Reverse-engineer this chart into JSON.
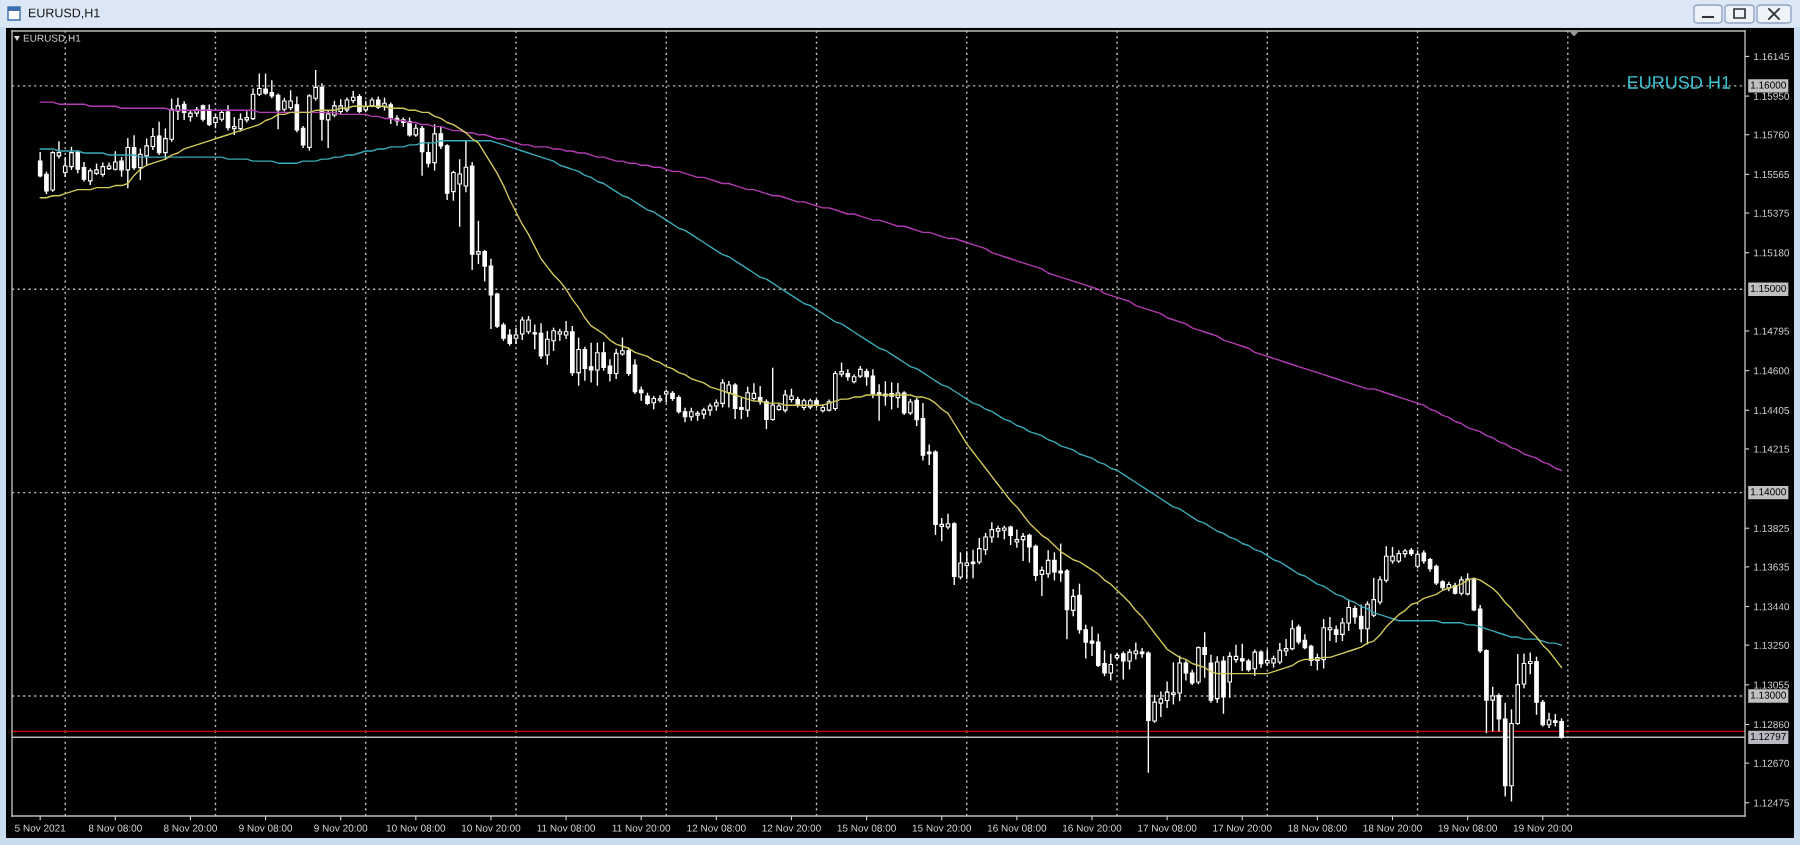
{
  "chart_data": {
    "type": "candlestick",
    "title": "EURUSD,H1",
    "subtitle": "EURUSD,H1",
    "annotations": [
      "EURUSD H1"
    ],
    "categories": [
      "5 Nov 2021",
      null,
      null,
      null,
      null,
      null,
      null,
      null,
      null,
      null,
      null,
      null,
      "8 Nov 08:00",
      null,
      null,
      null,
      null,
      null,
      null,
      null,
      null,
      null,
      null,
      null,
      "8 Nov 20:00",
      null,
      null,
      null,
      null,
      null,
      null,
      null,
      null,
      null,
      null,
      null,
      "9 Nov 08:00",
      null,
      null,
      null,
      null,
      null,
      null,
      null,
      null,
      null,
      null,
      null,
      "9 Nov 20:00",
      null,
      null,
      null,
      null,
      null,
      null,
      null,
      null,
      null,
      null,
      null,
      "10 Nov 08:00",
      null,
      null,
      null,
      null,
      null,
      null,
      null,
      null,
      null,
      null,
      null,
      "10 Nov 20:00",
      null,
      null,
      null,
      null,
      null,
      null,
      null,
      null,
      null,
      null,
      null,
      "11 Nov 08:00",
      null,
      null,
      null,
      null,
      null,
      null,
      null,
      null,
      null,
      null,
      null,
      "11 Nov 20:00",
      null,
      null,
      null,
      null,
      null,
      null,
      null,
      null,
      null,
      null,
      null,
      "12 Nov 08:00",
      null,
      null,
      null,
      null,
      null,
      null,
      null,
      null,
      null,
      null,
      null,
      "12 Nov 20:00",
      null,
      null,
      null,
      null,
      null,
      null,
      null,
      null,
      null,
      null,
      null,
      "15 Nov 08:00",
      null,
      null,
      null,
      null,
      null,
      null,
      null,
      null,
      null,
      null,
      null,
      "15 Nov 20:00",
      null,
      null,
      null,
      null,
      null,
      null,
      null,
      null,
      null,
      null,
      null,
      "16 Nov 08:00",
      null,
      null,
      null,
      null,
      null,
      null,
      null,
      null,
      null,
      null,
      null,
      "16 Nov 20:00",
      null,
      null,
      null,
      null,
      null,
      null,
      null,
      null,
      null,
      null,
      null,
      "17 Nov 08:00",
      null,
      null,
      null,
      null,
      null,
      null,
      null,
      null,
      null,
      null,
      null,
      "17 Nov 20:00",
      null,
      null,
      null,
      null,
      null,
      null,
      null,
      null,
      null,
      null,
      null,
      "18 Nov 08:00",
      null,
      null,
      null,
      null,
      null,
      null,
      null,
      null,
      null,
      null,
      null,
      "18 Nov 20:00",
      null,
      null,
      null,
      null,
      null,
      null,
      null,
      null,
      null,
      null,
      null,
      "19 Nov 08:00",
      null,
      null,
      null,
      null,
      null,
      null,
      null,
      null,
      null,
      null,
      null,
      "19 Nov 20:00",
      null,
      null,
      null
    ],
    "ohlc": [
      [
        1.15631,
        1.15672,
        1.15554,
        1.15557
      ],
      [
        1.15565,
        1.15575,
        1.15472,
        1.15483
      ],
      [
        1.15488,
        1.15675,
        1.15483,
        1.15672
      ],
      [
        1.15656,
        1.15724,
        1.15647,
        1.15672
      ],
      [
        1.15574,
        1.15647,
        1.15557,
        1.15606
      ],
      [
        1.15603,
        1.15697,
        1.1559,
        1.15672
      ],
      [
        1.15675,
        1.1568,
        1.15574,
        1.1559
      ],
      [
        1.15598,
        1.15623,
        1.15533,
        1.15541
      ],
      [
        1.15533,
        1.1559,
        1.15516,
        1.15582
      ],
      [
        1.1557,
        1.15615,
        1.15565,
        1.15587
      ],
      [
        1.15565,
        1.1562,
        1.15557,
        1.15603
      ],
      [
        1.15593,
        1.1562,
        1.1559,
        1.15606
      ],
      [
        1.1559,
        1.15675,
        1.15587,
        1.15626
      ],
      [
        1.15631,
        1.15647,
        1.15557,
        1.15587
      ],
      [
        1.15587,
        1.15741,
        1.155,
        1.15697
      ],
      [
        1.15697,
        1.15754,
        1.1559,
        1.15598
      ],
      [
        1.15598,
        1.15688,
        1.15541,
        1.15664
      ],
      [
        1.15656,
        1.15738,
        1.15615,
        1.15705
      ],
      [
        1.15702,
        1.1579,
        1.15688,
        1.15751
      ],
      [
        1.15754,
        1.1582,
        1.15664,
        1.15672
      ],
      [
        1.15672,
        1.15787,
        1.15639,
        1.15741
      ],
      [
        1.15738,
        1.15934,
        1.15729,
        1.15885
      ],
      [
        1.15877,
        1.15938,
        1.15836,
        1.15902
      ],
      [
        1.1591,
        1.15921,
        1.15836,
        1.15869
      ],
      [
        1.15849,
        1.15877,
        1.15828,
        1.15866
      ],
      [
        1.15866,
        1.15893,
        1.15852,
        1.15882
      ],
      [
        1.15902,
        1.15905,
        1.15828,
        1.15836
      ],
      [
        1.15882,
        1.15905,
        1.15806,
        1.15811
      ],
      [
        1.1582,
        1.15861,
        1.15795,
        1.15844
      ],
      [
        1.15836,
        1.15877,
        1.15828,
        1.15869
      ],
      [
        1.15872,
        1.15902,
        1.15784,
        1.15795
      ],
      [
        1.1579,
        1.15844,
        1.15762,
        1.158
      ],
      [
        1.1579,
        1.15861,
        1.15779,
        1.15836
      ],
      [
        1.15833,
        1.15872,
        1.15823,
        1.15844
      ],
      [
        1.15839,
        1.15984,
        1.15836,
        1.15959
      ],
      [
        1.15959,
        1.16057,
        1.15954,
        1.15987
      ],
      [
        1.15984,
        1.16057,
        1.15959,
        1.15964
      ],
      [
        1.15967,
        1.16025,
        1.15943,
        1.15951
      ],
      [
        1.15954,
        1.15959,
        1.1579,
        1.15882
      ],
      [
        1.15885,
        1.15938,
        1.15877,
        1.15926
      ],
      [
        1.15893,
        1.15975,
        1.15885,
        1.15926
      ],
      [
        1.15907,
        1.15944,
        1.15775,
        1.15784
      ],
      [
        1.15792,
        1.158,
        1.15698,
        1.1571
      ],
      [
        1.15698,
        1.15956,
        1.15685,
        1.15951
      ],
      [
        1.15939,
        1.16075,
        1.15931,
        1.15993
      ],
      [
        1.15993,
        1.1601,
        1.15734,
        1.15836
      ],
      [
        1.15833,
        1.15874,
        1.15698,
        1.15862
      ],
      [
        1.15857,
        1.15923,
        1.15849,
        1.15902
      ],
      [
        1.15874,
        1.15931,
        1.15866,
        1.15902
      ],
      [
        1.15882,
        1.15939,
        1.15874,
        1.15931
      ],
      [
        1.15928,
        1.15972,
        1.15918,
        1.15944
      ],
      [
        1.15948,
        1.15956,
        1.15869,
        1.15874
      ],
      [
        1.15882,
        1.15923,
        1.15874,
        1.15898
      ],
      [
        1.15902,
        1.15939,
        1.15898,
        1.15931
      ],
      [
        1.15931,
        1.15944,
        1.1589,
        1.15895
      ],
      [
        1.15898,
        1.15939,
        1.15882,
        1.15915
      ],
      [
        1.15907,
        1.15915,
        1.15816,
        1.15841
      ],
      [
        1.15841,
        1.15852,
        1.15808,
        1.15828
      ],
      [
        1.15833,
        1.15841,
        1.15803,
        1.1582
      ],
      [
        1.15825,
        1.15841,
        1.15754,
        1.15759
      ],
      [
        1.15759,
        1.15808,
        1.15754,
        1.15792
      ],
      [
        1.15792,
        1.158,
        1.15562,
        1.15677
      ],
      [
        1.15672,
        1.15718,
        1.15603,
        1.1562
      ],
      [
        1.15623,
        1.15808,
        1.15587,
        1.15764
      ],
      [
        1.15764,
        1.158,
        1.15693,
        1.15705
      ],
      [
        1.15705,
        1.1571,
        1.15442,
        1.15472
      ],
      [
        1.1548,
        1.15579,
        1.15439,
        1.15574
      ],
      [
        1.15518,
        1.15636,
        1.15311,
        1.15567
      ],
      [
        1.15508,
        1.15731,
        1.1548,
        1.156
      ],
      [
        1.15606,
        1.15623,
        1.15098,
        1.15173
      ],
      [
        1.15173,
        1.15333,
        1.15128,
        1.15185
      ],
      [
        1.15185,
        1.1519,
        1.15042,
        1.15114
      ],
      [
        1.15114,
        1.15147,
        1.14808,
        1.14972
      ],
      [
        1.14977,
        1.1498,
        1.14813,
        1.14819
      ],
      [
        1.14824,
        1.14832,
        1.1475,
        1.14759
      ],
      [
        1.14775,
        1.148,
        1.14726,
        1.14734
      ],
      [
        1.14759,
        1.14808,
        1.14734,
        1.14775
      ],
      [
        1.1478,
        1.14862,
        1.14754,
        1.14849
      ],
      [
        1.14791,
        1.14865,
        1.14783,
        1.14849
      ],
      [
        1.14786,
        1.14824,
        1.14709,
        1.1478
      ],
      [
        1.14783,
        1.14829,
        1.1466,
        1.14672
      ],
      [
        1.14677,
        1.14791,
        1.14632,
        1.14754
      ],
      [
        1.14747,
        1.14808,
        1.14701,
        1.14796
      ],
      [
        1.1478,
        1.14803,
        1.1475,
        1.14791
      ],
      [
        1.14775,
        1.14841,
        1.14759,
        1.14791
      ],
      [
        1.14791,
        1.14816,
        1.14578,
        1.1459
      ],
      [
        1.1459,
        1.14759,
        1.14529,
        1.14704
      ],
      [
        1.14704,
        1.14714,
        1.14554,
        1.14611
      ],
      [
        1.14619,
        1.14734,
        1.14545,
        1.14603
      ],
      [
        1.14603,
        1.14734,
        1.14529,
        1.14688
      ],
      [
        1.14688,
        1.14737,
        1.14603,
        1.14616
      ],
      [
        1.14622,
        1.14652,
        1.1455,
        1.14586
      ],
      [
        1.14586,
        1.14704,
        1.14562,
        1.14685
      ],
      [
        1.14682,
        1.14759,
        1.14677,
        1.14698
      ],
      [
        1.14698,
        1.14709,
        1.14578,
        1.14586
      ],
      [
        1.14627,
        1.14652,
        1.14488,
        1.14496
      ],
      [
        1.14504,
        1.14518,
        1.14455,
        1.14491
      ],
      [
        1.14475,
        1.14488,
        1.14435,
        1.14439
      ],
      [
        1.14442,
        1.14472,
        1.14414,
        1.14463
      ],
      [
        1.14455,
        1.14475,
        1.14447,
        1.14462
      ],
      [
        1.14485,
        1.14504,
        1.14447,
        1.14496
      ],
      [
        1.14488,
        1.14496,
        1.14455,
        1.14463
      ],
      [
        1.14468,
        1.14475,
        1.14393,
        1.14398
      ],
      [
        1.14398,
        1.14414,
        1.14349,
        1.14373
      ],
      [
        1.14373,
        1.14414,
        1.14357,
        1.14398
      ],
      [
        1.14381,
        1.14398,
        1.14357,
        1.1439
      ],
      [
        1.14386,
        1.14414,
        1.14365,
        1.14406
      ],
      [
        1.14406,
        1.14435,
        1.14381,
        1.14426
      ],
      [
        1.14426,
        1.14455,
        1.14406,
        1.14442
      ],
      [
        1.14439,
        1.14554,
        1.14422,
        1.1454
      ],
      [
        1.14491,
        1.14545,
        1.14422,
        1.14529
      ],
      [
        1.14529,
        1.14534,
        1.14365,
        1.14414
      ],
      [
        1.14419,
        1.14463,
        1.14365,
        1.14409
      ],
      [
        1.14406,
        1.14518,
        1.14376,
        1.14491
      ],
      [
        1.14463,
        1.14534,
        1.14455,
        1.14488
      ],
      [
        1.14468,
        1.14521,
        1.14435,
        1.14447
      ],
      [
        1.14447,
        1.14455,
        1.14316,
        1.1436
      ],
      [
        1.1436,
        1.14611,
        1.14357,
        1.14431
      ],
      [
        1.14409,
        1.14435,
        1.14406,
        1.14426
      ],
      [
        1.14406,
        1.14501,
        1.14398,
        1.1448
      ],
      [
        1.14458,
        1.14508,
        1.14447,
        1.14475
      ],
      [
        1.14458,
        1.14468,
        1.14422,
        1.14435
      ],
      [
        1.14419,
        1.14458,
        1.14409,
        1.14452
      ],
      [
        1.14422,
        1.14458,
        1.14414,
        1.14452
      ],
      [
        1.14452,
        1.14458,
        1.14419,
        1.14431
      ],
      [
        1.14403,
        1.14431,
        1.14398,
        1.14419
      ],
      [
        1.14406,
        1.14455,
        1.14403,
        1.14447
      ],
      [
        1.14414,
        1.14595,
        1.14406,
        1.14586
      ],
      [
        1.14583,
        1.14636,
        1.14573,
        1.14595
      ],
      [
        1.14586,
        1.14603,
        1.14554,
        1.1457
      ],
      [
        1.14545,
        1.14578,
        1.1454,
        1.1457
      ],
      [
        1.14573,
        1.14619,
        1.14567,
        1.14606
      ],
      [
        1.14595,
        1.14606,
        1.14529,
        1.1457
      ],
      [
        1.14573,
        1.14603,
        1.14468,
        1.14488
      ],
      [
        1.14491,
        1.14529,
        1.14357,
        1.1448
      ],
      [
        1.14485,
        1.14544,
        1.14431,
        1.14475
      ],
      [
        1.14487,
        1.14539,
        1.14413,
        1.14474
      ],
      [
        1.14467,
        1.14536,
        1.14421,
        1.1449
      ],
      [
        1.1449,
        1.14495,
        1.14385,
        1.14392
      ],
      [
        1.14392,
        1.14457,
        1.14385,
        1.14446
      ],
      [
        1.14454,
        1.14462,
        1.14331,
        1.14359
      ],
      [
        1.14364,
        1.14438,
        1.14162,
        1.14184
      ],
      [
        1.142,
        1.14233,
        1.14139,
        1.14192
      ],
      [
        1.142,
        1.14205,
        1.13795,
        1.13844
      ],
      [
        1.13834,
        1.13872,
        1.13765,
        1.13844
      ],
      [
        1.13831,
        1.13893,
        1.13823,
        1.13847
      ],
      [
        1.13847,
        1.13851,
        1.13549,
        1.13588
      ],
      [
        1.13585,
        1.13703,
        1.13577,
        1.13654
      ],
      [
        1.13642,
        1.13708,
        1.13577,
        1.13654
      ],
      [
        1.13659,
        1.13716,
        1.13582,
        1.13651
      ],
      [
        1.13659,
        1.13774,
        1.13651,
        1.13725
      ],
      [
        1.13719,
        1.13798,
        1.13697,
        1.13782
      ],
      [
        1.13782,
        1.13851,
        1.13757,
        1.13818
      ],
      [
        1.13811,
        1.13834,
        1.13782,
        1.13823
      ],
      [
        1.13815,
        1.13834,
        1.13774,
        1.13826
      ],
      [
        1.13831,
        1.13834,
        1.13746,
        1.1379
      ],
      [
        1.13757,
        1.13815,
        1.13733,
        1.13769
      ],
      [
        1.13769,
        1.13798,
        1.13667,
        1.13785
      ],
      [
        1.1379,
        1.13795,
        1.1366,
        1.13733
      ],
      [
        1.13736,
        1.13741,
        1.13569,
        1.13593
      ],
      [
        1.13598,
        1.13634,
        1.13495,
        1.13618
      ],
      [
        1.13601,
        1.13713,
        1.13585,
        1.13667
      ],
      [
        1.13667,
        1.13703,
        1.13572,
        1.1361
      ],
      [
        1.13615,
        1.13746,
        1.13565,
        1.13605
      ],
      [
        1.13615,
        1.13621,
        1.13282,
        1.13424
      ],
      [
        1.13421,
        1.13523,
        1.13396,
        1.1349
      ],
      [
        1.13495,
        1.13549,
        1.1331,
        1.13326
      ],
      [
        1.13326,
        1.13347,
        1.13188,
        1.13265
      ],
      [
        1.1327,
        1.13339,
        1.132,
        1.1326
      ],
      [
        1.13265,
        1.13303,
        1.13146,
        1.1315
      ],
      [
        1.13159,
        1.13221,
        1.13101,
        1.13113
      ],
      [
        1.13113,
        1.13205,
        1.1308,
        1.13155
      ],
      [
        1.13188,
        1.13208,
        1.13183,
        1.132
      ],
      [
        1.13208,
        1.13216,
        1.13085,
        1.13172
      ],
      [
        1.13172,
        1.13228,
        1.13134,
        1.13216
      ],
      [
        1.13208,
        1.1326,
        1.13183,
        1.13221
      ],
      [
        1.13216,
        1.13233,
        1.13192,
        1.13208
      ],
      [
        1.13211,
        1.13216,
        1.12626,
        1.1288
      ],
      [
        1.12877,
        1.13003,
        1.12872,
        1.1297
      ],
      [
        1.12965,
        1.13019,
        1.129,
        1.12986
      ],
      [
        1.12978,
        1.13068,
        1.12945,
        1.13019
      ],
      [
        1.13008,
        1.13162,
        1.12962,
        1.13016
      ],
      [
        1.13015,
        1.13195,
        1.12979,
        1.13162
      ],
      [
        1.13162,
        1.13172,
        1.1308,
        1.13113
      ],
      [
        1.13113,
        1.13126,
        1.13057,
        1.13064
      ],
      [
        1.13069,
        1.13241,
        1.13061,
        1.13238
      ],
      [
        1.13238,
        1.1331,
        1.13093,
        1.13205
      ],
      [
        1.13162,
        1.132,
        1.1297,
        1.12979
      ],
      [
        1.12987,
        1.13192,
        1.1297,
        1.13167
      ],
      [
        1.13172,
        1.13192,
        1.12916,
        1.12995
      ],
      [
        1.13069,
        1.13212,
        1.12995,
        1.13195
      ],
      [
        1.13179,
        1.13249,
        1.13167,
        1.13195
      ],
      [
        1.13184,
        1.13254,
        1.13126,
        1.13172
      ],
      [
        1.13172,
        1.13179,
        1.13123,
        1.1313
      ],
      [
        1.13134,
        1.13225,
        1.13102,
        1.13216
      ],
      [
        1.13216,
        1.13221,
        1.13143,
        1.13159
      ],
      [
        1.13162,
        1.13225,
        1.13151,
        1.13175
      ],
      [
        1.13162,
        1.13195,
        1.13143,
        1.13184
      ],
      [
        1.13167,
        1.13257,
        1.13159,
        1.13225
      ],
      [
        1.13221,
        1.13277,
        1.132,
        1.13233
      ],
      [
        1.13233,
        1.13369,
        1.13228,
        1.13331
      ],
      [
        1.13339,
        1.13348,
        1.13257,
        1.13266
      ],
      [
        1.13274,
        1.133,
        1.13233,
        1.13238
      ],
      [
        1.13244,
        1.13249,
        1.13151,
        1.13175
      ],
      [
        1.13175,
        1.13205,
        1.1313,
        1.13189
      ],
      [
        1.13179,
        1.13375,
        1.13139,
        1.13336
      ],
      [
        1.13326,
        1.13385,
        1.13274,
        1.13336
      ],
      [
        1.13326,
        1.13343,
        1.13266,
        1.13303
      ],
      [
        1.13303,
        1.1338,
        1.13274,
        1.13359
      ],
      [
        1.13359,
        1.13471,
        1.13323,
        1.13435
      ],
      [
        1.1343,
        1.13441,
        1.13359,
        1.13389
      ],
      [
        1.13392,
        1.13446,
        1.13266,
        1.13331
      ],
      [
        1.13331,
        1.13462,
        1.13257,
        1.13451
      ],
      [
        1.13397,
        1.13577,
        1.13392,
        1.13474
      ],
      [
        1.13462,
        1.13585,
        1.13454,
        1.13572
      ],
      [
        1.13569,
        1.13733,
        1.13561,
        1.13687
      ],
      [
        1.13664,
        1.1373,
        1.13654,
        1.13687
      ],
      [
        1.13664,
        1.13713,
        1.13659,
        1.137
      ],
      [
        1.137,
        1.1372,
        1.13684,
        1.13713
      ],
      [
        1.13717,
        1.13725,
        1.13692,
        1.137
      ],
      [
        1.13638,
        1.13713,
        1.13631,
        1.13697
      ],
      [
        1.13703,
        1.13713,
        1.13654,
        1.13664
      ],
      [
        1.13671,
        1.13676,
        1.13615,
        1.13626
      ],
      [
        1.13638,
        1.13643,
        1.13549,
        1.13556
      ],
      [
        1.13561,
        1.13566,
        1.13523,
        1.13533
      ],
      [
        1.13531,
        1.13559,
        1.13518,
        1.13548
      ],
      [
        1.13543,
        1.13554,
        1.13502,
        1.13505
      ],
      [
        1.13505,
        1.13584,
        1.13498,
        1.13571
      ],
      [
        1.13502,
        1.136,
        1.13498,
        1.13575
      ],
      [
        1.13571,
        1.13575,
        1.1342,
        1.13423
      ],
      [
        1.13428,
        1.13444,
        1.13215,
        1.13223
      ],
      [
        1.13223,
        1.13226,
        1.12821,
        1.1298
      ],
      [
        1.1298,
        1.13042,
        1.12829,
        1.13
      ],
      [
        1.13002,
        1.1301,
        1.12829,
        1.12887
      ],
      [
        1.12887,
        1.12964,
        1.12509,
        1.12559
      ],
      [
        1.12559,
        1.12931,
        1.12485,
        1.12865
      ],
      [
        1.12865,
        1.13203,
        1.12862,
        1.13056
      ],
      [
        1.13059,
        1.13206,
        1.13042,
        1.1316
      ],
      [
        1.1316,
        1.1321,
        1.13111,
        1.1317
      ],
      [
        1.1317,
        1.1319,
        1.12911,
        1.12969
      ],
      [
        1.12969,
        1.12977,
        1.12854,
        1.12859
      ],
      [
        1.12859,
        1.12914,
        1.12846,
        1.12882
      ],
      [
        1.12878,
        1.12908,
        1.12854,
        1.1287
      ],
      [
        1.12875,
        1.12887,
        1.12793,
        1.12797
      ]
    ],
    "color": "#ffffff",
    "series": [
      {
        "type": "line",
        "color": "#b23cb4",
        "values": [
          1.1592,
          1.1592,
          1.1592,
          1.1591,
          1.1591,
          1.1591,
          1.1591,
          1.1591,
          1.159,
          1.159,
          1.159,
          1.159,
          1.159,
          1.1589,
          1.1589,
          1.1589,
          1.1589,
          1.1589,
          1.1589,
          1.1589,
          1.1589,
          1.1588,
          1.1588,
          1.1588,
          1.1588,
          1.1588,
          1.1588,
          1.1588,
          1.1588,
          1.1588,
          1.1588,
          1.1588,
          1.1588,
          1.1588,
          1.1588,
          1.1587,
          1.1587,
          1.1587,
          1.1587,
          1.1587,
          1.1587,
          1.1587,
          1.1587,
          1.1587,
          1.1587,
          1.1587,
          1.1587,
          1.1587,
          1.1586,
          1.1586,
          1.1586,
          1.1586,
          1.1586,
          1.1585,
          1.1585,
          1.1584,
          1.1584,
          1.1583,
          1.1583,
          1.1582,
          1.1582,
          1.1581,
          1.1581,
          1.158,
          1.158,
          1.1579,
          1.1578,
          1.1578,
          1.1577,
          1.1577,
          1.1576,
          1.1576,
          1.1575,
          1.1574,
          1.1574,
          1.1573,
          1.1572,
          1.1571,
          1.1571,
          1.157,
          1.157,
          1.157,
          1.1569,
          1.1569,
          1.1568,
          1.1568,
          1.1567,
          1.1567,
          1.1566,
          1.1565,
          1.1565,
          1.1564,
          1.1563,
          1.1563,
          1.1562,
          1.1562,
          1.1561,
          1.1561,
          1.156,
          1.156,
          1.1559,
          1.1558,
          1.1558,
          1.1557,
          1.1556,
          1.1555,
          1.1555,
          1.1554,
          1.1553,
          1.1552,
          1.1552,
          1.1551,
          1.155,
          1.1549,
          1.1549,
          1.1548,
          1.1547,
          1.1546,
          1.1546,
          1.1545,
          1.1544,
          1.1543,
          1.1543,
          1.1542,
          1.1541,
          1.154,
          1.154,
          1.1539,
          1.1538,
          1.1537,
          1.1537,
          1.1536,
          1.1535,
          1.1534,
          1.1534,
          1.1533,
          1.1532,
          1.1531,
          1.1531,
          1.153,
          1.1529,
          1.1528,
          1.1528,
          1.1527,
          1.1526,
          1.1525,
          1.1525,
          1.1524,
          1.1523,
          1.1522,
          1.1521,
          1.152,
          1.1518,
          1.1517,
          1.1516,
          1.1515,
          1.1514,
          1.1513,
          1.1512,
          1.1511,
          1.151,
          1.1508,
          1.1507,
          1.1506,
          1.1505,
          1.1504,
          1.1503,
          1.1502,
          1.1501,
          1.15,
          1.1498,
          1.1497,
          1.1496,
          1.1495,
          1.1494,
          1.1492,
          1.1491,
          1.149,
          1.1489,
          1.1488,
          1.1486,
          1.1485,
          1.1484,
          1.1483,
          1.1481,
          1.148,
          1.1479,
          1.1478,
          1.1477,
          1.1475,
          1.1474,
          1.1473,
          1.1472,
          1.1471,
          1.1469,
          1.1468,
          1.1467,
          1.1466,
          1.1465,
          1.1464,
          1.1463,
          1.1462,
          1.1461,
          1.146,
          1.1459,
          1.1458,
          1.1457,
          1.1456,
          1.1455,
          1.1454,
          1.1453,
          1.1452,
          1.1451,
          1.1451,
          1.145,
          1.1449,
          1.1448,
          1.1447,
          1.1446,
          1.1445,
          1.1444,
          1.1443,
          1.1441,
          1.144,
          1.1438,
          1.1437,
          1.1435,
          1.1434,
          1.1432,
          1.1431,
          1.143,
          1.1428,
          1.1427,
          1.1425,
          1.1424,
          1.1422,
          1.1421,
          1.1419,
          1.1418,
          1.1417,
          1.1415,
          1.1414,
          1.1412,
          1.1411
        ]
      },
      {
        "type": "line",
        "color": "#3aa9b9",
        "values": [
          1.1569,
          1.1569,
          1.1569,
          1.1568,
          1.1568,
          1.1568,
          1.1568,
          1.1567,
          1.1567,
          1.1567,
          1.1567,
          1.1566,
          1.1566,
          1.1566,
          1.1566,
          1.1566,
          1.1565,
          1.1565,
          1.1565,
          1.1565,
          1.1565,
          1.1565,
          1.1565,
          1.1565,
          1.1565,
          1.1565,
          1.1565,
          1.1565,
          1.1565,
          1.1565,
          1.1564,
          1.1564,
          1.1564,
          1.1564,
          1.1563,
          1.1563,
          1.1563,
          1.1563,
          1.1562,
          1.1562,
          1.1562,
          1.1562,
          1.1563,
          1.1563,
          1.1563,
          1.1564,
          1.1564,
          1.1565,
          1.1565,
          1.1566,
          1.1566,
          1.1567,
          1.1568,
          1.1568,
          1.1569,
          1.1569,
          1.157,
          1.157,
          1.157,
          1.1571,
          1.1571,
          1.1572,
          1.1572,
          1.1572,
          1.1573,
          1.1573,
          1.1573,
          1.1573,
          1.1573,
          1.1573,
          1.1573,
          1.1573,
          1.1573,
          1.1572,
          1.1571,
          1.157,
          1.1569,
          1.1568,
          1.1567,
          1.1566,
          1.1565,
          1.1564,
          1.1563,
          1.1561,
          1.156,
          1.1559,
          1.1558,
          1.1556,
          1.1555,
          1.1553,
          1.1552,
          1.155,
          1.1548,
          1.1546,
          1.1545,
          1.1543,
          1.1541,
          1.1539,
          1.1538,
          1.1536,
          1.1534,
          1.1532,
          1.153,
          1.1529,
          1.1527,
          1.1525,
          1.1523,
          1.1521,
          1.1519,
          1.1517,
          1.1516,
          1.1514,
          1.1512,
          1.151,
          1.1508,
          1.1506,
          1.1505,
          1.1503,
          1.1501,
          1.1499,
          1.1497,
          1.1495,
          1.1493,
          1.1492,
          1.149,
          1.1488,
          1.1486,
          1.1484,
          1.1483,
          1.1481,
          1.1479,
          1.1477,
          1.1475,
          1.1473,
          1.1471,
          1.147,
          1.1468,
          1.1466,
          1.1464,
          1.1462,
          1.1461,
          1.1459,
          1.1457,
          1.1455,
          1.1453,
          1.1452,
          1.145,
          1.1448,
          1.1446,
          1.1444,
          1.1443,
          1.1441,
          1.144,
          1.1438,
          1.1436,
          1.1435,
          1.1433,
          1.1432,
          1.143,
          1.1429,
          1.1428,
          1.1426,
          1.1425,
          1.1423,
          1.1422,
          1.1421,
          1.1419,
          1.1418,
          1.1417,
          1.1415,
          1.1414,
          1.1412,
          1.1411,
          1.1409,
          1.1407,
          1.1405,
          1.1403,
          1.1401,
          1.1399,
          1.1397,
          1.1395,
          1.1393,
          1.1392,
          1.139,
          1.1388,
          1.1386,
          1.1385,
          1.1383,
          1.1381,
          1.138,
          1.1378,
          1.1377,
          1.1375,
          1.1374,
          1.1372,
          1.1371,
          1.1369,
          1.1367,
          1.1366,
          1.1364,
          1.1362,
          1.136,
          1.1359,
          1.1357,
          1.1355,
          1.1354,
          1.1352,
          1.135,
          1.1349,
          1.1347,
          1.1346,
          1.1344,
          1.1343,
          1.1341,
          1.134,
          1.1339,
          1.1338,
          1.1337,
          1.1337,
          1.1337,
          1.1337,
          1.1337,
          1.1337,
          1.1337,
          1.1336,
          1.1336,
          1.1336,
          1.1336,
          1.1335,
          1.1335,
          1.1334,
          1.1333,
          1.1332,
          1.1331,
          1.133,
          1.1329,
          1.1329,
          1.1328,
          1.1328,
          1.1328,
          1.1327,
          1.1326,
          1.1326,
          1.1325
        ]
      },
      {
        "type": "line",
        "color": "#d2c85a",
        "values": [
          1.1545,
          1.1545,
          1.1546,
          1.1546,
          1.1547,
          1.1548,
          1.1549,
          1.1549,
          1.1549,
          1.155,
          1.155,
          1.155,
          1.1551,
          1.1551,
          1.1552,
          1.1556,
          1.1559,
          1.1561,
          1.1562,
          1.1563,
          1.1564,
          1.1566,
          1.1567,
          1.1569,
          1.157,
          1.1571,
          1.1572,
          1.1573,
          1.1574,
          1.1575,
          1.1576,
          1.1577,
          1.1578,
          1.1579,
          1.158,
          1.1581,
          1.1583,
          1.1584,
          1.1586,
          1.1586,
          1.1587,
          1.1587,
          1.1587,
          1.1587,
          1.1588,
          1.1588,
          1.1588,
          1.1588,
          1.1589,
          1.1589,
          1.159,
          1.159,
          1.159,
          1.159,
          1.159,
          1.159,
          1.1589,
          1.1589,
          1.1589,
          1.1588,
          1.1588,
          1.1587,
          1.1587,
          1.1585,
          1.1584,
          1.1582,
          1.1581,
          1.1579,
          1.1577,
          1.1574,
          1.1572,
          1.1567,
          1.1562,
          1.1557,
          1.1551,
          1.1544,
          1.1538,
          1.1532,
          1.1527,
          1.1521,
          1.1515,
          1.1511,
          1.1507,
          1.1504,
          1.15,
          1.1495,
          1.1491,
          1.1486,
          1.1482,
          1.148,
          1.1478,
          1.1475,
          1.1473,
          1.1472,
          1.1471,
          1.1469,
          1.1468,
          1.1467,
          1.1465,
          1.1464,
          1.1462,
          1.1461,
          1.1459,
          1.1458,
          1.1456,
          1.1455,
          1.1454,
          1.1452,
          1.1451,
          1.145,
          1.1449,
          1.1448,
          1.1447,
          1.1446,
          1.1445,
          1.1445,
          1.1444,
          1.1444,
          1.1444,
          1.1443,
          1.1443,
          1.1443,
          1.1443,
          1.1443,
          1.1443,
          1.1443,
          1.1444,
          1.1445,
          1.1446,
          1.1446,
          1.1447,
          1.1447,
          1.1448,
          1.1448,
          1.1448,
          1.1448,
          1.1448,
          1.1448,
          1.1448,
          1.1448,
          1.1447,
          1.1447,
          1.1446,
          1.1444,
          1.1441,
          1.1439,
          1.1434,
          1.1429,
          1.1424,
          1.142,
          1.1416,
          1.1412,
          1.1408,
          1.1404,
          1.14,
          1.1396,
          1.1393,
          1.1389,
          1.1385,
          1.1382,
          1.1379,
          1.1377,
          1.1374,
          1.1371,
          1.1369,
          1.1367,
          1.1366,
          1.1364,
          1.1362,
          1.136,
          1.1357,
          1.1355,
          1.1352,
          1.1349,
          1.1346,
          1.1342,
          1.1339,
          1.1335,
          1.1331,
          1.1327,
          1.1323,
          1.1321,
          1.1319,
          1.1318,
          1.1316,
          1.1315,
          1.1314,
          1.1312,
          1.1311,
          1.1311,
          1.1311,
          1.1311,
          1.1311,
          1.1311,
          1.1311,
          1.1311,
          1.1311,
          1.1312,
          1.1313,
          1.1314,
          1.1315,
          1.1317,
          1.1318,
          1.1318,
          1.1318,
          1.1319,
          1.1319,
          1.132,
          1.1321,
          1.1322,
          1.1323,
          1.1324,
          1.1326,
          1.1327,
          1.133,
          1.1334,
          1.1337,
          1.134,
          1.1342,
          1.1345,
          1.1346,
          1.1348,
          1.1349,
          1.135,
          1.1352,
          1.1353,
          1.1354,
          1.1355,
          1.1357,
          1.1358,
          1.1357,
          1.1355,
          1.1353,
          1.135,
          1.1346,
          1.1343,
          1.1339,
          1.1336,
          1.1332,
          1.1329,
          1.1325,
          1.1322,
          1.1318,
          1.1314
        ]
      }
    ],
    "ylim": [
      1.1241,
      1.1627
    ],
    "yticks": [
      1.16145,
      {
        "value": 1.1595,
        "label": "1.15950"
      },
      {
        "value": 1.1576,
        "label": "1.15760"
      },
      1.15565,
      1.15375,
      {
        "value": 1.1518,
        "label": "1.15180"
      },
      1.14795,
      {
        "value": 1.146,
        "label": "1.14600"
      },
      1.14405,
      1.14215,
      1.13825,
      1.13635,
      {
        "value": 1.1344,
        "label": "1.13440"
      },
      {
        "value": 1.1325,
        "label": "1.13250"
      },
      1.13055,
      {
        "value": 1.1286,
        "label": "1.12860"
      },
      {
        "value": 1.1267,
        "label": "1.12670"
      },
      1.12475
    ],
    "ref_lines": [
      {
        "axis": "y",
        "value": 1.16,
        "label": "1.16000",
        "color": "#c0c0c0",
        "line_style": "dotted"
      },
      {
        "axis": "y",
        "value": 1.15,
        "label": "1.15000",
        "color": "#c0c0c0",
        "line_style": "dotted"
      },
      {
        "axis": "y",
        "value": 1.14,
        "label": "1.14000",
        "color": "#c0c0c0",
        "line_style": "dotted"
      },
      {
        "axis": "y",
        "value": 1.13,
        "label": "1.13000",
        "color": "#c0c0c0",
        "line_style": "dotted"
      },
      {
        "axis": "y",
        "value": 1.12826,
        "color": "#d40000",
        "line_style": "solid"
      },
      {
        "axis": "y",
        "value": 1.12797,
        "label": "1.12797",
        "color": "#b8b8c0",
        "line_style": "solid"
      }
    ]
  }
}
